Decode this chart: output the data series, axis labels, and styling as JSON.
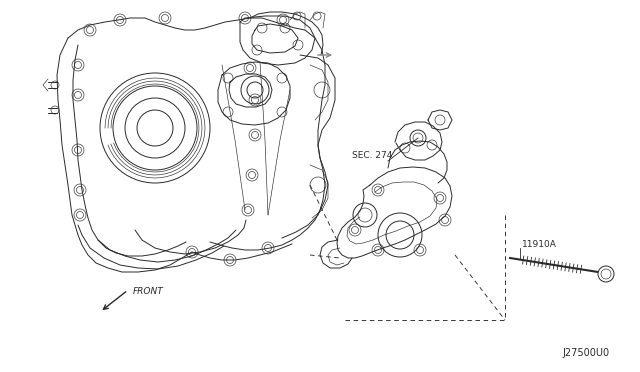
{
  "background_color": "#ffffff",
  "fig_width": 6.4,
  "fig_height": 3.72,
  "dpi": 100,
  "labels": {
    "sec274": "SEC. 274",
    "part_num": "11910A",
    "front": "FRONT",
    "drawing_num": "J27500U0"
  },
  "line_color": "#2a2a2a",
  "gray_color": "#888888",
  "lw_main": 0.7,
  "lw_thin": 0.45,
  "lw_thick": 1.0
}
